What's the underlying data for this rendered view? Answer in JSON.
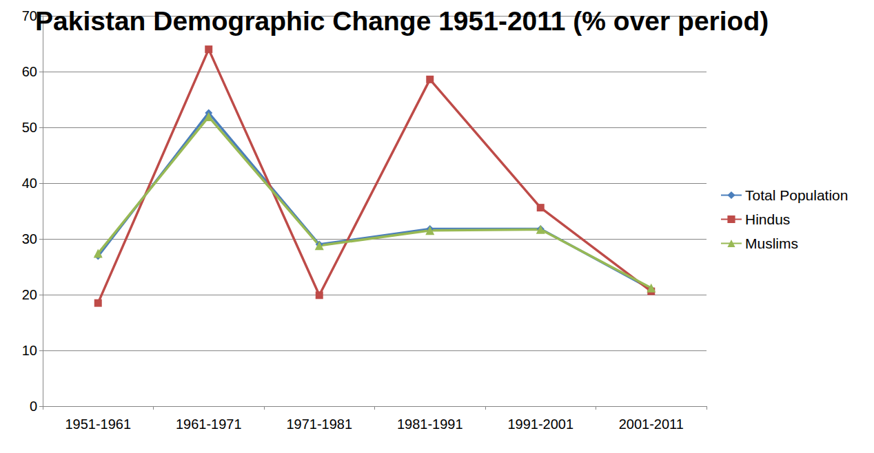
{
  "chart_data": {
    "type": "line",
    "title": "Pakistan Demographic Change 1951-2011 (% over period)",
    "categories": [
      "1951-1961",
      "1961-1971",
      "1971-1981",
      "1981-1991",
      "1991-2001",
      "2001-2011"
    ],
    "series": [
      {
        "name": "Total Population",
        "color": "#4a7ebb",
        "marker": "diamond",
        "line_style": "solid",
        "values": [
          26.9,
          52.6,
          29.0,
          31.8,
          31.8,
          21.0
        ]
      },
      {
        "name": "Hindus",
        "color": "#be4b48",
        "marker": "square",
        "line_style": "solid",
        "values": [
          18.5,
          64.0,
          19.9,
          58.6,
          35.6,
          20.6
        ]
      },
      {
        "name": "Muslims",
        "color": "#98b954",
        "marker": "triangle",
        "line_style": "solid",
        "values": [
          27.4,
          51.9,
          28.8,
          31.5,
          31.7,
          21.2
        ]
      }
    ],
    "ylim": [
      0,
      70
    ],
    "yticks": [
      0,
      10,
      20,
      30,
      40,
      50,
      60,
      70
    ],
    "grid": true,
    "legend": "right"
  }
}
